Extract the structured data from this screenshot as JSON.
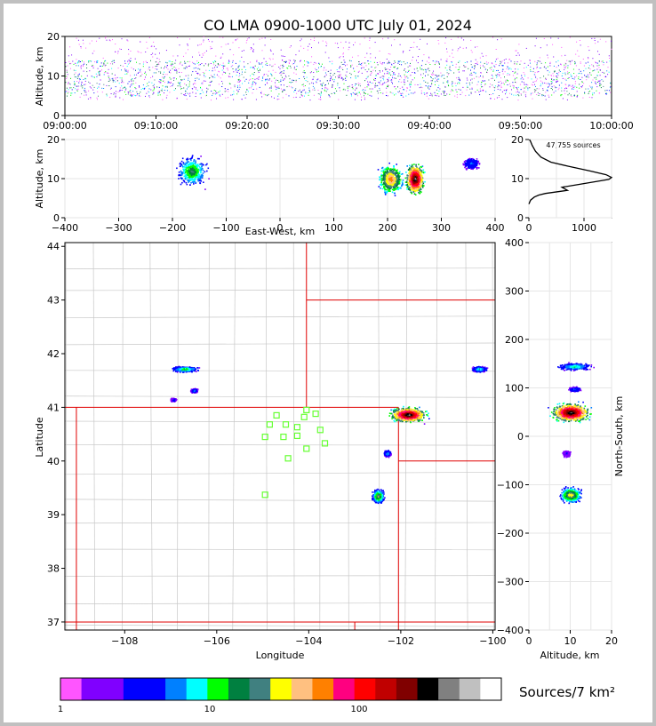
{
  "title": "CO LMA 0900-1000 UTC July 01, 2024",
  "chart_data": [
    {
      "id": "time-height",
      "type": "scatter",
      "ylabel": "Altitude, km",
      "xlim": [
        "09:00:00",
        "10:00:00"
      ],
      "ylim": [
        0,
        20
      ],
      "x_ticks": [
        "09:00:00",
        "09:10:00",
        "09:20:00",
        "09:30:00",
        "09:40:00",
        "09:50:00",
        "10:00:00"
      ],
      "y_ticks": [
        0,
        10,
        20
      ],
      "bands": [
        {
          "x0_min": 0,
          "x1_min": 60,
          "alt_min": 4,
          "alt_max": 20,
          "dense_min": 5,
          "dense_max": 14
        }
      ]
    },
    {
      "id": "ew-height",
      "type": "scatter",
      "xlabel": "East-West, km",
      "ylabel": "Altitude, km",
      "xlim": [
        -400,
        400
      ],
      "ylim": [
        0,
        20
      ],
      "x_ticks": [
        -400,
        -300,
        -200,
        -100,
        0,
        100,
        200,
        300,
        400
      ],
      "y_ticks": [
        0,
        10,
        20
      ],
      "clusters": [
        {
          "x": -165,
          "y": 12,
          "w": 35,
          "h": 5,
          "intensity": 0.5
        },
        {
          "x": 205,
          "y": 10,
          "w": 30,
          "h": 5,
          "intensity": 0.7
        },
        {
          "x": 250,
          "y": 10,
          "w": 22,
          "h": 5,
          "intensity": 1.0
        },
        {
          "x": 355,
          "y": 14,
          "w": 20,
          "h": 2,
          "intensity": 0.3
        }
      ]
    },
    {
      "id": "altitude-histogram",
      "type": "line",
      "annotation": "47,755 sources",
      "xlim": [
        0,
        1500
      ],
      "ylim": [
        0,
        20
      ],
      "x_ticks": [
        0,
        1000
      ],
      "y_ticks": [
        0,
        10,
        20
      ],
      "x": [
        0,
        30,
        100,
        180,
        300,
        700,
        600,
        900,
        1200,
        1450,
        1500,
        1400,
        1100,
        700,
        400,
        220,
        120,
        60,
        30,
        10
      ],
      "y": [
        3.5,
        4.5,
        5.3,
        5.8,
        6.2,
        7.0,
        7.8,
        8.5,
        9.2,
        9.8,
        10.3,
        11.0,
        12.0,
        13.2,
        14.2,
        15.5,
        17.0,
        18.5,
        19.5,
        20.0
      ]
    },
    {
      "id": "plan-view",
      "type": "scatter",
      "xlabel": "Longitude",
      "ylabel": "Latitude",
      "xlim": [
        -109.3,
        -99.95
      ],
      "ylim": [
        36.85,
        44.07
      ],
      "x_ticks": [
        -108,
        -106,
        -104,
        -102,
        -100
      ],
      "y_ticks": [
        37,
        38,
        39,
        40,
        41,
        42,
        43,
        44
      ],
      "stations": [
        {
          "lon": -104.7,
          "lat": 40.85
        },
        {
          "lon": -104.05,
          "lat": 40.95
        },
        {
          "lon": -103.85,
          "lat": 40.88
        },
        {
          "lon": -104.1,
          "lat": 40.82
        },
        {
          "lon": -104.85,
          "lat": 40.68
        },
        {
          "lon": -104.5,
          "lat": 40.68
        },
        {
          "lon": -104.25,
          "lat": 40.63
        },
        {
          "lon": -103.75,
          "lat": 40.58
        },
        {
          "lon": -104.95,
          "lat": 40.45
        },
        {
          "lon": -104.55,
          "lat": 40.45
        },
        {
          "lon": -104.25,
          "lat": 40.47
        },
        {
          "lon": -103.65,
          "lat": 40.33
        },
        {
          "lon": -104.05,
          "lat": 40.23
        },
        {
          "lon": -104.45,
          "lat": 40.05
        },
        {
          "lon": -104.95,
          "lat": 39.37
        }
      ],
      "clusters": [
        {
          "lon": -106.7,
          "lat": 41.72,
          "rx": 0.45,
          "ry": 0.08,
          "intensity": 0.45
        },
        {
          "lon": -106.5,
          "lat": 41.32,
          "rx": 0.12,
          "ry": 0.06,
          "intensity": 0.3
        },
        {
          "lon": -106.95,
          "lat": 41.15,
          "rx": 0.1,
          "ry": 0.05,
          "intensity": 0.25
        },
        {
          "lon": -101.85,
          "lat": 40.87,
          "rx": 0.6,
          "ry": 0.22,
          "intensity": 1.0
        },
        {
          "lon": -102.3,
          "lat": 40.15,
          "rx": 0.12,
          "ry": 0.1,
          "intensity": 0.35
        },
        {
          "lon": -102.5,
          "lat": 39.35,
          "rx": 0.2,
          "ry": 0.2,
          "intensity": 0.55
        },
        {
          "lon": -100.3,
          "lat": 41.72,
          "rx": 0.25,
          "ry": 0.08,
          "intensity": 0.4
        }
      ]
    },
    {
      "id": "ns-height",
      "type": "scatter",
      "xlabel": "Altitude, km",
      "ylabel": "North-South, km",
      "xlim": [
        0,
        20
      ],
      "ylim": [
        -400,
        400
      ],
      "x_ticks": [
        0,
        10,
        20
      ],
      "y_ticks": [
        -400,
        -300,
        -200,
        -100,
        0,
        100,
        200,
        300,
        400
      ],
      "clusters": [
        {
          "x": 11,
          "y": 145,
          "w": 8,
          "h": 12,
          "intensity": 0.4
        },
        {
          "x": 11,
          "y": 98,
          "w": 3,
          "h": 8,
          "intensity": 0.3
        },
        {
          "x": 10,
          "y": 50,
          "w": 9,
          "h": 30,
          "intensity": 1.0
        },
        {
          "x": 9,
          "y": -35,
          "w": 2,
          "h": 10,
          "intensity": 0.2
        },
        {
          "x": 10,
          "y": -120,
          "w": 5,
          "h": 25,
          "intensity": 0.6
        }
      ]
    }
  ],
  "colorbar": {
    "label": "Sources/7 km²",
    "tick_labels": [
      "1",
      "10",
      "100"
    ],
    "colors": [
      "#ff55ff",
      "#8000ff",
      "#8000ff",
      "#0000ff",
      "#0000ff",
      "#0080ff",
      "#00ffff",
      "#00ff00",
      "#008040",
      "#408080",
      "#ffff00",
      "#ffc080",
      "#ff8000",
      "#ff0080",
      "#ff0000",
      "#c00000",
      "#800000",
      "#000000",
      "#808080",
      "#c0c0c0",
      "#ffffff"
    ]
  }
}
